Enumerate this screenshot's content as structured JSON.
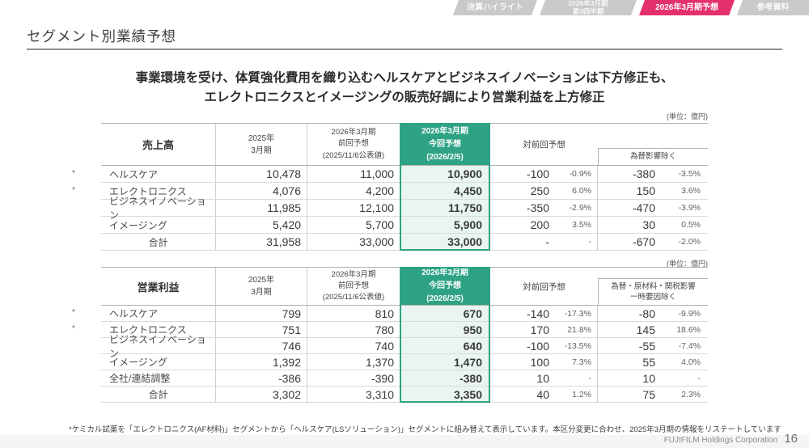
{
  "tabs": [
    {
      "label": "決算ハイライト",
      "active": false
    },
    {
      "label": "2026年3月期\n第3四半期",
      "active": false
    },
    {
      "label": "2026年3月期予想",
      "active": true
    },
    {
      "label": "参考資料",
      "active": false
    }
  ],
  "page": {
    "title": "セグメント別業績予想",
    "headline": "事業環境を受け、体質強化費用を織り込むヘルスケアとビジネスイノベーションは下方修正も、\nエレクトロニクスとイメージングの販売好調により営業利益を上方修正",
    "unit_label": "(単位：億円)",
    "asterisk": "*",
    "footnote": "*ケミカル試薬を「エレクトロニクス(AF材料)」セグメントから「ヘルスケア(LSソリューション)」セグメントに組み替えて表示しています。本区分変更に合わせ、2025年3月期の情報をリステートしています",
    "footer_company": "FUJIFILM Holdings Corporation",
    "footer_page": "16"
  },
  "colors": {
    "accent_pink": "#E4316B",
    "inactive_tab_gray": "#C9C9CC",
    "green_header": "#2EA284",
    "green_light_bg": "#E9F5F0",
    "green_text": "#00805C"
  },
  "sales_table": {
    "title": "売上高",
    "headers": {
      "fy2025": "2025年\n3月期",
      "prev": "2026年3月期\n前回予想\n(2025/11/6公表値)",
      "current": "2026年3月期\n今回予想\n(2026/2/5)",
      "vs_prev": "対前回予想",
      "excl": "為替影響除く"
    },
    "rows": [
      {
        "label": "ヘルスケア",
        "fy2025": "10,478",
        "prev": "11,000",
        "current": "10,900",
        "diff": "-100",
        "diff_pct": "-0.9%",
        "excl": "-380",
        "excl_pct": "-3.5%"
      },
      {
        "label": "エレクトロニクス",
        "fy2025": "4,076",
        "prev": "4,200",
        "current": "4,450",
        "diff": "250",
        "diff_pct": "6.0%",
        "excl": "150",
        "excl_pct": "3.6%"
      },
      {
        "label": "ビジネスイノベーション",
        "fy2025": "11,985",
        "prev": "12,100",
        "current": "11,750",
        "diff": "-350",
        "diff_pct": "-2.9%",
        "excl": "-470",
        "excl_pct": "-3.9%"
      },
      {
        "label": "イメージング",
        "fy2025": "5,420",
        "prev": "5,700",
        "current": "5,900",
        "diff": "200",
        "diff_pct": "3.5%",
        "excl": "30",
        "excl_pct": "0.5%"
      },
      {
        "label": "合計",
        "fy2025": "31,958",
        "prev": "33,000",
        "current": "33,000",
        "diff": "-",
        "diff_pct": "-",
        "excl": "-670",
        "excl_pct": "-2.0%"
      }
    ]
  },
  "profit_table": {
    "title": "営業利益",
    "headers": {
      "fy2025": "2025年\n3月期",
      "prev": "2026年3月期\n前回予想\n(2025/11/6公表値)",
      "current": "2026年3月期\n今回予想\n(2026/2/5)",
      "vs_prev": "対前回予想",
      "excl": "為替・原材料・関税影響\n一時要因除く"
    },
    "rows": [
      {
        "label": "ヘルスケア",
        "fy2025": "799",
        "prev": "810",
        "current": "670",
        "diff": "-140",
        "diff_pct": "-17.3%",
        "excl": "-80",
        "excl_pct": "-9.9%"
      },
      {
        "label": "エレクトロニクス",
        "fy2025": "751",
        "prev": "780",
        "current": "950",
        "diff": "170",
        "diff_pct": "21.8%",
        "excl": "145",
        "excl_pct": "18.6%"
      },
      {
        "label": "ビジネスイノベーション",
        "fy2025": "746",
        "prev": "740",
        "current": "640",
        "diff": "-100",
        "diff_pct": "-13.5%",
        "excl": "-55",
        "excl_pct": "-7.4%"
      },
      {
        "label": "イメージング",
        "fy2025": "1,392",
        "prev": "1,370",
        "current": "1,470",
        "diff": "100",
        "diff_pct": "7.3%",
        "excl": "55",
        "excl_pct": "4.0%"
      },
      {
        "label": "全社/連結調整",
        "fy2025": "-386",
        "prev": "-390",
        "current": "-380",
        "diff": "10",
        "diff_pct": "-",
        "excl": "10",
        "excl_pct": "-"
      },
      {
        "label": "合計",
        "fy2025": "3,302",
        "prev": "3,310",
        "current": "3,350",
        "diff": "40",
        "diff_pct": "1.2%",
        "excl": "75",
        "excl_pct": "2.3%"
      }
    ]
  }
}
